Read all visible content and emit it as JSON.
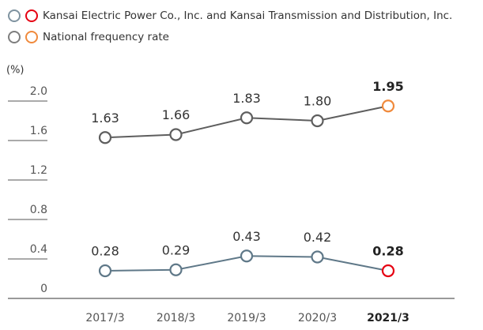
{
  "chart_data": {
    "type": "line",
    "y_unit_label": "(%)",
    "categories": [
      "2017/3",
      "2018/3",
      "2019/3",
      "2020/3",
      "2021/3"
    ],
    "series": [
      {
        "name": "Kansai Electric Power Co., Inc. and Kansai Transmission and Distribution, Inc.",
        "color": "#5f7888",
        "highlight_color": "#e60012",
        "values": [
          0.28,
          0.29,
          0.43,
          0.42,
          0.28
        ],
        "value_labels": [
          "0.28",
          "0.29",
          "0.43",
          "0.42",
          "0.28"
        ]
      },
      {
        "name": "National frequency rate",
        "color": "#5e5e5e",
        "highlight_color": "#f08a3c",
        "values": [
          1.63,
          1.66,
          1.83,
          1.8,
          1.95
        ],
        "value_labels": [
          "1.63",
          "1.66",
          "1.83",
          "1.80",
          "1.95"
        ]
      }
    ],
    "ylim": [
      0,
      2
    ],
    "yticks": [
      0,
      0.4,
      0.8,
      1.2,
      1.6,
      {
        "value": 2,
        "label": "2.0"
      }
    ]
  }
}
